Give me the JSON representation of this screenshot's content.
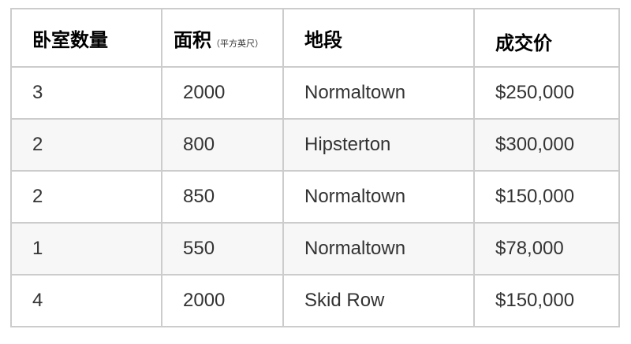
{
  "table": {
    "headers": [
      {
        "label": "卧室数量"
      },
      {
        "label": "面积",
        "unit": "（平方英尺）"
      },
      {
        "label": "地段"
      },
      {
        "label": "成交价"
      }
    ],
    "rows": [
      [
        "3",
        "2000",
        "Normaltown",
        "$250,000"
      ],
      [
        "2",
        "800",
        "Hipsterton",
        "$300,000"
      ],
      [
        "2",
        "850",
        "Normaltown",
        "$150,000"
      ],
      [
        "1",
        "550",
        "Normaltown",
        "$78,000"
      ],
      [
        "4",
        "2000",
        "Skid Row",
        "$150,000"
      ]
    ]
  }
}
